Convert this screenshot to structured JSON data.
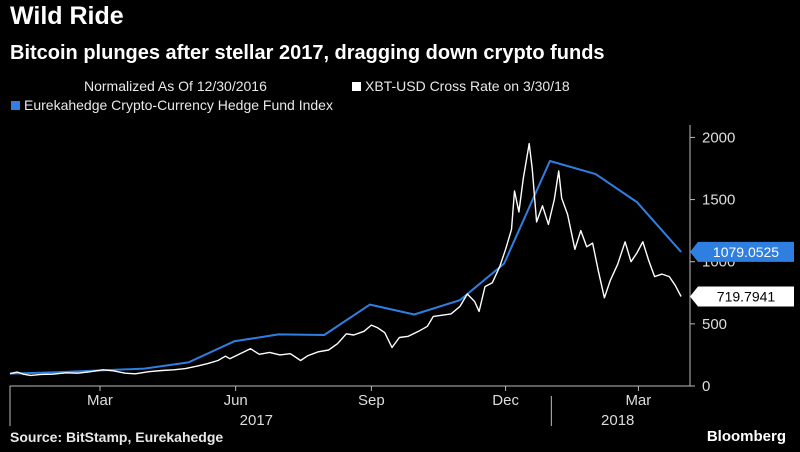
{
  "header": {
    "title": "Wild Ride",
    "subtitle": "Bitcoin plunges after stellar 2017, dragging down crypto funds"
  },
  "legend": {
    "note": "Normalized As Of 12/30/2016",
    "items": [
      {
        "label": "XBT-USD Cross Rate  on 3/30/18",
        "color": "#ffffff"
      },
      {
        "label": "Eurekahedge Crypto-Currency Hedge Fund Index",
        "color": "#2f7fe0"
      }
    ]
  },
  "footer": {
    "source": "Source: BitStamp, Eurekahedge",
    "brand": "Bloomberg"
  },
  "chart_data": {
    "type": "line",
    "x_unit": "date",
    "xlim": [
      "2016-12-30",
      "2018-04-05"
    ],
    "ylim": [
      0,
      2100
    ],
    "y_ticks": [
      0,
      500,
      1000,
      1500,
      2000
    ],
    "x_month_ticks": [
      {
        "label": "Mar",
        "date": "2017-03-01"
      },
      {
        "label": "Jun",
        "date": "2017-06-01"
      },
      {
        "label": "Sep",
        "date": "2017-09-01"
      },
      {
        "label": "Dec",
        "date": "2017-12-01"
      },
      {
        "label": "Mar",
        "date": "2018-03-01"
      }
    ],
    "x_year_labels": [
      {
        "label": "2017",
        "date": "2017-06-15"
      },
      {
        "label": "2018",
        "date": "2018-02-15"
      }
    ],
    "grid": false,
    "series": [
      {
        "name": "XBT-USD Cross Rate  on 3/30/18",
        "color": "#ffffff",
        "last_value_label": "719.7941",
        "points": [
          [
            "2016-12-30",
            100
          ],
          [
            "2017-01-04",
            112
          ],
          [
            "2017-01-08",
            95
          ],
          [
            "2017-01-13",
            85
          ],
          [
            "2017-01-20",
            93
          ],
          [
            "2017-01-28",
            95
          ],
          [
            "2017-02-06",
            106
          ],
          [
            "2017-02-14",
            103
          ],
          [
            "2017-02-22",
            114
          ],
          [
            "2017-03-03",
            130
          ],
          [
            "2017-03-10",
            122
          ],
          [
            "2017-03-18",
            103
          ],
          [
            "2017-03-25",
            98
          ],
          [
            "2017-04-03",
            115
          ],
          [
            "2017-04-12",
            125
          ],
          [
            "2017-04-20",
            130
          ],
          [
            "2017-04-28",
            140
          ],
          [
            "2017-05-06",
            160
          ],
          [
            "2017-05-13",
            180
          ],
          [
            "2017-05-20",
            205
          ],
          [
            "2017-05-25",
            240
          ],
          [
            "2017-05-28",
            220
          ],
          [
            "2017-06-04",
            260
          ],
          [
            "2017-06-11",
            300
          ],
          [
            "2017-06-17",
            255
          ],
          [
            "2017-06-24",
            270
          ],
          [
            "2017-07-01",
            250
          ],
          [
            "2017-07-08",
            260
          ],
          [
            "2017-07-15",
            205
          ],
          [
            "2017-07-20",
            245
          ],
          [
            "2017-07-27",
            275
          ],
          [
            "2017-08-03",
            290
          ],
          [
            "2017-08-09",
            340
          ],
          [
            "2017-08-15",
            420
          ],
          [
            "2017-08-20",
            410
          ],
          [
            "2017-08-27",
            440
          ],
          [
            "2017-09-01",
            490
          ],
          [
            "2017-09-05",
            470
          ],
          [
            "2017-09-10",
            430
          ],
          [
            "2017-09-15",
            310
          ],
          [
            "2017-09-20",
            390
          ],
          [
            "2017-09-26",
            400
          ],
          [
            "2017-10-03",
            440
          ],
          [
            "2017-10-09",
            480
          ],
          [
            "2017-10-13",
            560
          ],
          [
            "2017-10-19",
            570
          ],
          [
            "2017-10-25",
            580
          ],
          [
            "2017-10-31",
            640
          ],
          [
            "2017-11-05",
            740
          ],
          [
            "2017-11-10",
            680
          ],
          [
            "2017-11-13",
            600
          ],
          [
            "2017-11-17",
            800
          ],
          [
            "2017-11-22",
            830
          ],
          [
            "2017-11-27",
            960
          ],
          [
            "2017-12-01",
            1100
          ],
          [
            "2017-12-05",
            1260
          ],
          [
            "2017-12-07",
            1570
          ],
          [
            "2017-12-10",
            1400
          ],
          [
            "2017-12-13",
            1670
          ],
          [
            "2017-12-17",
            1950
          ],
          [
            "2017-12-19",
            1750
          ],
          [
            "2017-12-22",
            1320
          ],
          [
            "2017-12-26",
            1450
          ],
          [
            "2017-12-30",
            1300
          ],
          [
            "2018-01-03",
            1500
          ],
          [
            "2018-01-06",
            1730
          ],
          [
            "2018-01-08",
            1510
          ],
          [
            "2018-01-12",
            1380
          ],
          [
            "2018-01-17",
            1100
          ],
          [
            "2018-01-21",
            1250
          ],
          [
            "2018-01-25",
            1120
          ],
          [
            "2018-01-29",
            1150
          ],
          [
            "2018-02-02",
            920
          ],
          [
            "2018-02-06",
            710
          ],
          [
            "2018-02-10",
            850
          ],
          [
            "2018-02-15",
            980
          ],
          [
            "2018-02-20",
            1160
          ],
          [
            "2018-02-24",
            1000
          ],
          [
            "2018-02-28",
            1070
          ],
          [
            "2018-03-04",
            1160
          ],
          [
            "2018-03-08",
            1010
          ],
          [
            "2018-03-12",
            880
          ],
          [
            "2018-03-17",
            900
          ],
          [
            "2018-03-22",
            880
          ],
          [
            "2018-03-26",
            810
          ],
          [
            "2018-03-30",
            720
          ]
        ]
      },
      {
        "name": "Eurekahedge Crypto-Currency Hedge Fund Index",
        "color": "#2f7fe0",
        "last_value_label": "1079.0525",
        "points": [
          [
            "2016-12-30",
            100
          ],
          [
            "2017-01-31",
            110
          ],
          [
            "2017-02-28",
            125
          ],
          [
            "2017-03-31",
            140
          ],
          [
            "2017-04-30",
            190
          ],
          [
            "2017-05-31",
            360
          ],
          [
            "2017-06-30",
            415
          ],
          [
            "2017-07-31",
            410
          ],
          [
            "2017-08-31",
            655
          ],
          [
            "2017-09-30",
            575
          ],
          [
            "2017-10-31",
            690
          ],
          [
            "2017-11-30",
            985
          ],
          [
            "2017-12-31",
            1810
          ],
          [
            "2018-01-31",
            1705
          ],
          [
            "2018-02-28",
            1480
          ],
          [
            "2018-03-30",
            1079
          ]
        ]
      }
    ]
  }
}
